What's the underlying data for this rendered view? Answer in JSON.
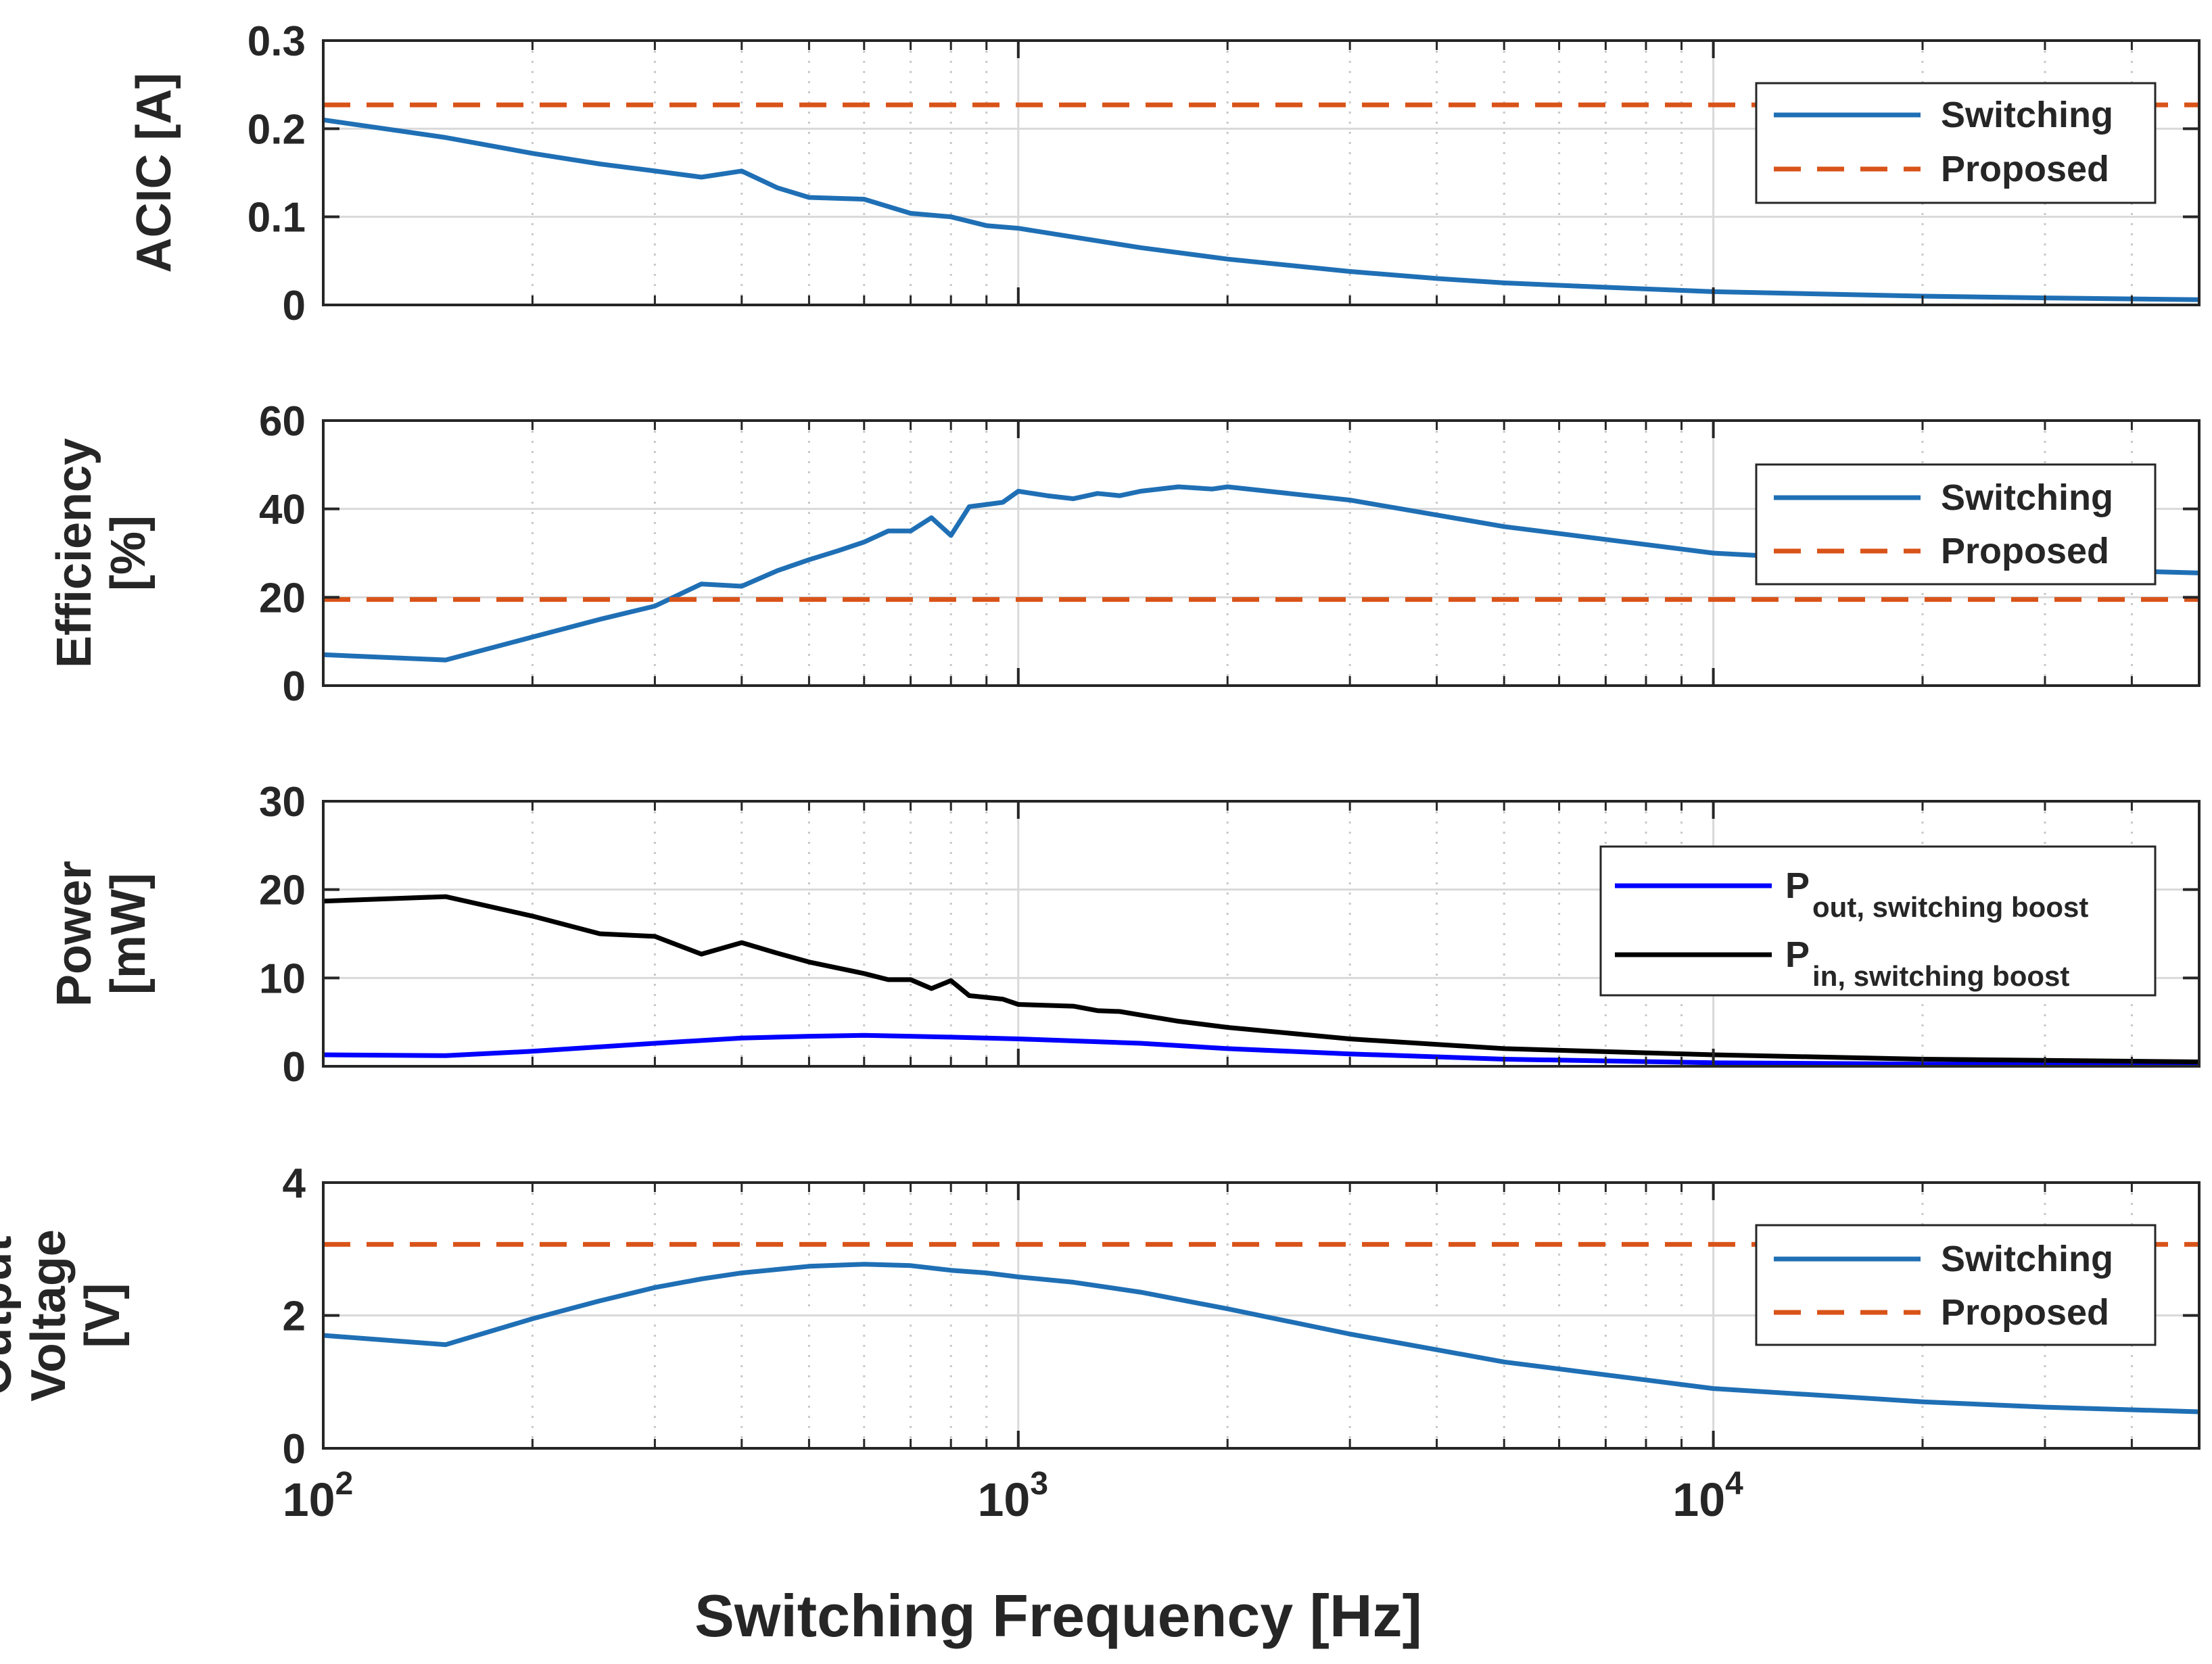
{
  "figure": {
    "xlabel": "Switching Frequency  [Hz]",
    "x_ticks": [
      {
        "value": 100,
        "base": "10",
        "exp": "2"
      },
      {
        "value": 1000,
        "base": "10",
        "exp": "3"
      },
      {
        "value": 10000,
        "base": "10",
        "exp": "4"
      }
    ],
    "colors": {
      "switching": "#1f6fb5",
      "proposed": "#d95319",
      "pout": "#0000ff",
      "pin": "#000000",
      "grid": "#d9d9d9",
      "axis": "#262626"
    }
  },
  "chart_data": [
    {
      "type": "line",
      "id": "acic",
      "ylabel_lines": [
        "ACIC [A]"
      ],
      "ylim": [
        0,
        0.3
      ],
      "yticks": [
        "0",
        "0.1",
        "0.2",
        "0.3"
      ],
      "ytick_values": [
        0,
        0.1,
        0.2,
        0.3
      ],
      "xlim": [
        100,
        50000
      ],
      "xscale": "log",
      "grid": true,
      "legend_position": "top-right",
      "series": [
        {
          "name": "Switching",
          "style": "solid",
          "color": "#1f6fb5",
          "x": [
            100,
            150,
            200,
            250,
            300,
            350,
            400,
            450,
            500,
            600,
            700,
            800,
            900,
            1000,
            1200,
            1500,
            2000,
            3000,
            4000,
            5000,
            7000,
            10000,
            20000,
            30000,
            50000
          ],
          "y": [
            0.21,
            0.19,
            0.172,
            0.16,
            0.152,
            0.145,
            0.152,
            0.133,
            0.122,
            0.12,
            0.104,
            0.1,
            0.09,
            0.087,
            0.077,
            0.065,
            0.052,
            0.038,
            0.03,
            0.025,
            0.02,
            0.015,
            0.01,
            0.008,
            0.006
          ],
          "legend": [
            {
              "text": "Switching",
              "sub": ""
            }
          ]
        },
        {
          "name": "Proposed",
          "style": "dashed",
          "color": "#d95319",
          "x": [
            100,
            50000
          ],
          "y": [
            0.227,
            0.227
          ],
          "legend": [
            {
              "text": "Proposed",
              "sub": ""
            }
          ]
        }
      ]
    },
    {
      "type": "line",
      "id": "efficiency",
      "ylabel_lines": [
        "Efficiency",
        "[%]"
      ],
      "ylim": [
        0,
        60
      ],
      "yticks": [
        "0",
        "20",
        "40",
        "60"
      ],
      "ytick_values": [
        0,
        20,
        40,
        60
      ],
      "xlim": [
        100,
        50000
      ],
      "xscale": "log",
      "grid": true,
      "legend_position": "top-right",
      "series": [
        {
          "name": "Switching",
          "style": "solid",
          "color": "#1f6fb5",
          "x": [
            100,
            150,
            200,
            250,
            300,
            350,
            400,
            450,
            500,
            550,
            600,
            650,
            700,
            750,
            800,
            850,
            900,
            950,
            1000,
            1100,
            1200,
            1300,
            1400,
            1500,
            1700,
            1900,
            2000,
            3000,
            5000,
            10000,
            20000,
            30000,
            50000
          ],
          "y": [
            7,
            5.8,
            11,
            15,
            18,
            23,
            22.5,
            26,
            28.5,
            30.5,
            32.5,
            35,
            35,
            38,
            34,
            40.5,
            41,
            41.5,
            44,
            43,
            42.3,
            43.5,
            43,
            44,
            45,
            44.5,
            45,
            42,
            36,
            30,
            27.5,
            26.5,
            25.5
          ],
          "legend": [
            {
              "text": "Switching",
              "sub": ""
            }
          ]
        },
        {
          "name": "Proposed",
          "style": "dashed",
          "color": "#d95319",
          "x": [
            100,
            50000
          ],
          "y": [
            19.5,
            19.5
          ],
          "legend": [
            {
              "text": "Proposed",
              "sub": ""
            }
          ]
        }
      ]
    },
    {
      "type": "line",
      "id": "power",
      "ylabel_lines": [
        "Power",
        "[mW]"
      ],
      "ylim": [
        0,
        30
      ],
      "yticks": [
        "0",
        "10",
        "20",
        "30"
      ],
      "ytick_values": [
        0,
        10,
        20,
        30
      ],
      "xlim": [
        100,
        50000
      ],
      "xscale": "log",
      "grid": true,
      "legend_position": "top-right",
      "series": [
        {
          "name": "P out, switching boost",
          "style": "solid",
          "color": "#0000ff",
          "x": [
            100,
            150,
            200,
            250,
            300,
            400,
            500,
            600,
            700,
            800,
            1000,
            1500,
            2000,
            3000,
            5000,
            10000,
            20000,
            50000
          ],
          "y": [
            1.3,
            1.2,
            1.7,
            2.2,
            2.6,
            3.2,
            3.4,
            3.5,
            3.4,
            3.3,
            3.1,
            2.6,
            2.0,
            1.4,
            0.8,
            0.4,
            0.25,
            0.15
          ],
          "legend": [
            {
              "text": "P",
              "sub": "out, switching boost"
            }
          ]
        },
        {
          "name": "P in, switching boost",
          "style": "solid",
          "color": "#000000",
          "x": [
            100,
            150,
            200,
            250,
            300,
            350,
            400,
            450,
            500,
            600,
            650,
            700,
            750,
            800,
            850,
            900,
            950,
            1000,
            1200,
            1300,
            1400,
            1500,
            1700,
            2000,
            3000,
            5000,
            10000,
            20000,
            50000
          ],
          "y": [
            18.7,
            19.2,
            17,
            15,
            14.7,
            12.7,
            14,
            12.8,
            11.8,
            10.5,
            9.8,
            9.8,
            8.8,
            9.7,
            8,
            7.8,
            7.6,
            7,
            6.8,
            6.3,
            6.2,
            5.8,
            5.1,
            4.4,
            3.1,
            2.0,
            1.3,
            0.8,
            0.5
          ],
          "legend": [
            {
              "text": "P",
              "sub": "in, switching boost"
            }
          ]
        }
      ]
    },
    {
      "type": "line",
      "id": "voltage",
      "ylabel_lines": [
        "Output",
        "Voltage",
        "[V]"
      ],
      "ylim": [
        0,
        4
      ],
      "yticks": [
        "0",
        "2",
        "4"
      ],
      "ytick_values": [
        0,
        2,
        4
      ],
      "xlim": [
        100,
        50000
      ],
      "xscale": "log",
      "grid": true,
      "legend_position": "top-right",
      "series": [
        {
          "name": "Switching",
          "style": "solid",
          "color": "#1f6fb5",
          "x": [
            100,
            150,
            200,
            250,
            300,
            350,
            400,
            500,
            600,
            700,
            800,
            900,
            1000,
            1200,
            1500,
            2000,
            3000,
            5000,
            10000,
            20000,
            30000,
            50000
          ],
          "y": [
            1.7,
            1.56,
            1.95,
            2.22,
            2.42,
            2.55,
            2.64,
            2.74,
            2.77,
            2.75,
            2.68,
            2.64,
            2.58,
            2.5,
            2.35,
            2.1,
            1.72,
            1.3,
            0.9,
            0.7,
            0.62,
            0.55
          ],
          "legend": [
            {
              "text": "Switching",
              "sub": ""
            }
          ]
        },
        {
          "name": "Proposed",
          "style": "dashed",
          "color": "#d95319",
          "x": [
            100,
            50000
          ],
          "y": [
            3.07,
            3.07
          ],
          "legend": [
            {
              "text": "Proposed",
              "sub": ""
            }
          ]
        }
      ]
    }
  ]
}
